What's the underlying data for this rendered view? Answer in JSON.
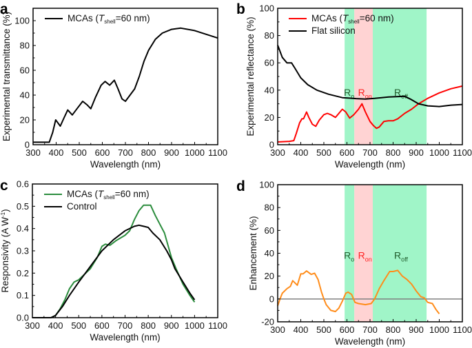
{
  "chart_data": [
    {
      "panel": "a",
      "type": "line",
      "xlabel": "Wavelength (nm)",
      "ylabel": "Experimental transmittance (%)",
      "xlim": [
        300,
        1100
      ],
      "ylim": [
        0,
        110
      ],
      "xticks": [
        300,
        400,
        500,
        600,
        700,
        800,
        900,
        1000,
        1100
      ],
      "yticks": [
        0,
        20,
        40,
        60,
        80,
        100
      ],
      "legend_position": "top-left",
      "series": [
        {
          "name_parts": [
            "MCAs (",
            "T",
            "shell",
            "=60 nm)"
          ],
          "color": "#000000",
          "x": [
            300,
            350,
            370,
            385,
            398,
            418,
            435,
            450,
            470,
            490,
            515,
            535,
            550,
            570,
            595,
            612,
            632,
            652,
            668,
            685,
            700,
            720,
            740,
            760,
            780,
            800,
            830,
            860,
            900,
            940,
            1000,
            1050,
            1100
          ],
          "y": [
            2,
            2,
            2,
            10,
            20,
            15,
            22,
            28,
            24,
            29,
            35,
            32,
            29,
            38,
            48,
            51,
            48,
            52,
            45,
            37,
            35,
            40,
            45,
            55,
            67,
            76,
            85,
            90,
            93,
            94,
            92,
            89,
            86
          ]
        }
      ]
    },
    {
      "panel": "b",
      "type": "line",
      "xlabel": "Wavelength (nm)",
      "ylabel": "Experimental reflectance (%)",
      "xlim": [
        300,
        1100
      ],
      "ylim": [
        0,
        100
      ],
      "xticks": [
        300,
        400,
        500,
        600,
        700,
        800,
        900,
        1000,
        1100
      ],
      "yticks": [
        0,
        20,
        40,
        60,
        80,
        100
      ],
      "legend_position": "top-left",
      "bands": [
        {
          "from": 590,
          "to": 632,
          "color": "#a0f5c8",
          "label_main": "R",
          "label_sub": "off",
          "label_color": "#1e5a2a"
        },
        {
          "from": 632,
          "to": 712,
          "color": "#ffd3d3",
          "label_main": "R",
          "label_sub": "on",
          "label_color": "#ff2020"
        },
        {
          "from": 712,
          "to": 945,
          "color": "#a0f5c8",
          "label_main": "R",
          "label_sub": "off",
          "label_color": "#1e5a2a"
        }
      ],
      "series": [
        {
          "name_parts": [
            "MCAs (",
            "T",
            "shell",
            "=60 nm)"
          ],
          "color": "#ff0000",
          "x": [
            300,
            350,
            370,
            380,
            395,
            405,
            412,
            425,
            435,
            450,
            465,
            480,
            500,
            515,
            530,
            550,
            565,
            580,
            595,
            612,
            630,
            650,
            665,
            680,
            700,
            715,
            728,
            740,
            760,
            780,
            800,
            820,
            850,
            880,
            910,
            950,
            1000,
            1050,
            1100
          ],
          "y": [
            2,
            2.5,
            3,
            8,
            16,
            19,
            19,
            24,
            20,
            15,
            13.5,
            18,
            22,
            23,
            22,
            20,
            23,
            26,
            24,
            19.5,
            22,
            26,
            30,
            24,
            17,
            14,
            12,
            13,
            17,
            17.5,
            17.5,
            19,
            23,
            26,
            30,
            34,
            38,
            41,
            43
          ]
        },
        {
          "name_parts": [
            "Flat silicon"
          ],
          "color": "#000000",
          "x": [
            300,
            320,
            340,
            360,
            375,
            400,
            430,
            470,
            520,
            580,
            640,
            680,
            720,
            780,
            850,
            880,
            910,
            950,
            1000,
            1050,
            1100
          ],
          "y": [
            73,
            64,
            60,
            60,
            56,
            49,
            44,
            40,
            37,
            34.5,
            33.8,
            33.5,
            34,
            35,
            35.5,
            33,
            30,
            28.5,
            28,
            29,
            29.5
          ]
        }
      ]
    },
    {
      "panel": "c",
      "type": "line",
      "xlabel": "Wavelength (nm)",
      "ylabel_parts": [
        "Responsivity (A W",
        "-1",
        ")"
      ],
      "xlim": [
        300,
        1100
      ],
      "ylim": [
        0,
        0.6
      ],
      "xticks": [
        300,
        400,
        500,
        600,
        700,
        800,
        900,
        1000,
        1100
      ],
      "yticks": [
        "0.0",
        "0.1",
        "0.2",
        "0.3",
        "0.4",
        "0.5",
        "0.6"
      ],
      "legend_position": "top-left",
      "series": [
        {
          "name_parts": [
            "MCAs (",
            "T",
            "shell",
            "=60 nm)"
          ],
          "color": "#2a8c3c",
          "x": [
            300,
            380,
            400,
            420,
            440,
            460,
            480,
            500,
            520,
            550,
            580,
            600,
            615,
            635,
            660,
            700,
            720,
            740,
            760,
            780,
            800,
            810,
            830,
            850,
            870,
            900,
            920,
            950,
            980,
            1000
          ],
          "y": [
            0,
            0,
            0.01,
            0.04,
            0.08,
            0.13,
            0.16,
            0.17,
            0.19,
            0.22,
            0.27,
            0.32,
            0.33,
            0.325,
            0.345,
            0.37,
            0.39,
            0.44,
            0.48,
            0.505,
            0.505,
            0.505,
            0.46,
            0.42,
            0.38,
            0.27,
            0.22,
            0.15,
            0.1,
            0.07
          ]
        },
        {
          "name_parts": [
            "Control"
          ],
          "color": "#000000",
          "x": [
            300,
            380,
            400,
            430,
            460,
            500,
            550,
            600,
            650,
            700,
            740,
            760,
            780,
            800,
            820,
            850,
            880,
            900,
            915,
            950,
            980,
            1000
          ],
          "y": [
            0,
            0,
            0.01,
            0.05,
            0.1,
            0.16,
            0.23,
            0.3,
            0.35,
            0.39,
            0.41,
            0.415,
            0.41,
            0.405,
            0.38,
            0.35,
            0.3,
            0.26,
            0.22,
            0.16,
            0.11,
            0.08
          ]
        }
      ]
    },
    {
      "panel": "d",
      "type": "line",
      "xlabel": "Wavelength (nm)",
      "ylabel": "Enhancement (%)",
      "xlim": [
        300,
        1100
      ],
      "ylim": [
        -20,
        100
      ],
      "xticks": [
        300,
        400,
        500,
        600,
        700,
        800,
        900,
        1000,
        1100
      ],
      "yticks": [
        -20,
        0,
        20,
        40,
        60,
        80,
        100
      ],
      "reference_line": {
        "y": 0,
        "color": "#808080"
      },
      "bands": [
        {
          "from": 590,
          "to": 632,
          "color": "#a0f5c8",
          "label_main": "R",
          "label_sub": "off",
          "label_color": "#1e5a2a"
        },
        {
          "from": 632,
          "to": 712,
          "color": "#ffd3d3",
          "label_main": "R",
          "label_sub": "on",
          "label_color": "#ff2020"
        },
        {
          "from": 712,
          "to": 945,
          "color": "#a0f5c8",
          "label_main": "R",
          "label_sub": "off",
          "label_color": "#1e5a2a"
        }
      ],
      "series": [
        {
          "color": "#ff8c1a",
          "x": [
            300,
            310,
            320,
            340,
            355,
            365,
            385,
            400,
            410,
            425,
            445,
            460,
            475,
            490,
            500,
            510,
            530,
            550,
            565,
            580,
            595,
            605,
            620,
            635,
            650,
            680,
            705,
            720,
            740,
            760,
            785,
            800,
            820,
            840,
            860,
            880,
            900,
            920,
            935,
            950,
            970,
            985,
            1000
          ],
          "y": [
            -6,
            0,
            5,
            9,
            11,
            16,
            12,
            22,
            22,
            24.5,
            21.5,
            22.5,
            17,
            6,
            0,
            -5,
            -10,
            -11,
            -8,
            -2,
            5,
            6,
            4,
            -3,
            -4,
            -5,
            -4,
            0,
            9,
            16,
            24,
            24,
            25,
            20,
            17,
            13,
            7,
            2,
            1,
            -3,
            -4,
            -9,
            -13
          ]
        }
      ]
    }
  ]
}
